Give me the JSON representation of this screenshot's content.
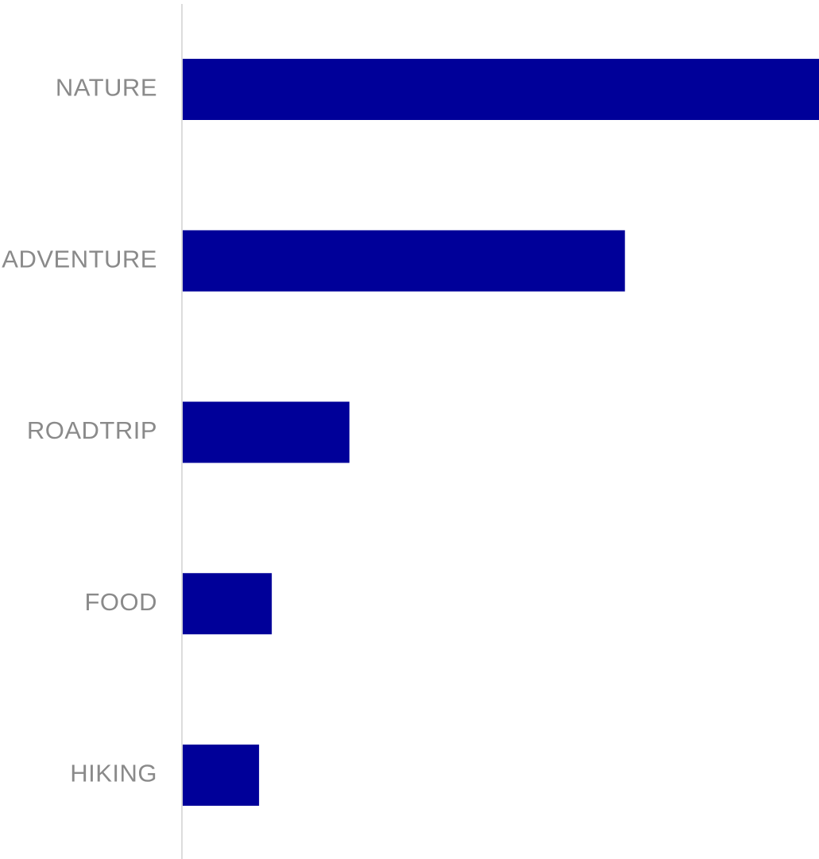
{
  "chart_data": {
    "type": "bar",
    "orientation": "horizontal",
    "categories": [
      "NATURE",
      "ADVENTURE",
      "ROADTRIP",
      "FOOD",
      "HIKING"
    ],
    "values": [
      100,
      69.5,
      26.2,
      14,
      12
    ],
    "xlim": [
      0,
      100
    ],
    "grid": false,
    "legend": "none",
    "title": "",
    "xlabel": "",
    "ylabel": "",
    "colors": {
      "bar": "#000099",
      "axis_line": "#dcdcdc",
      "label": "#8a8a8a"
    }
  }
}
